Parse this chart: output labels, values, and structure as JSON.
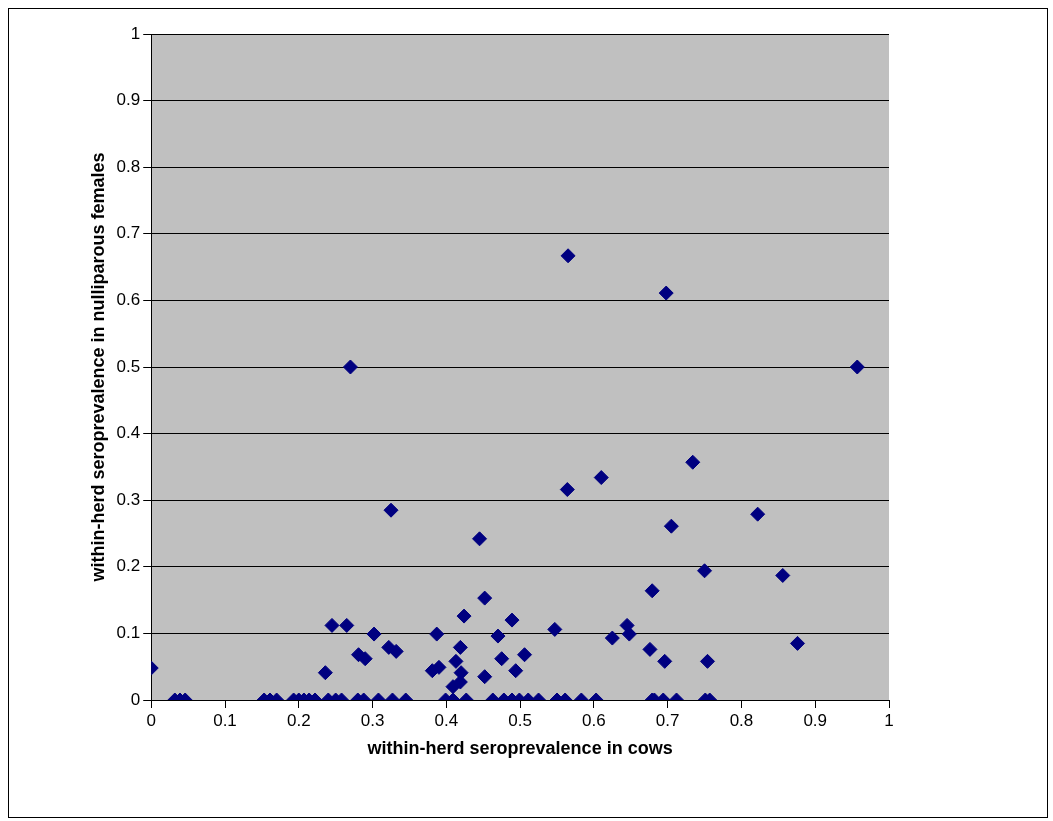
{
  "chart_data": {
    "type": "scatter",
    "xlabel": "within-herd seroprevalence in cows",
    "ylabel": "within-herd seroprevalence in nulliparous females",
    "xlim": [
      0,
      1
    ],
    "ylim": [
      0,
      1
    ],
    "xticks": [
      0,
      0.1,
      0.2,
      0.3,
      0.4,
      0.5,
      0.6,
      0.7,
      0.8,
      0.9,
      1
    ],
    "yticks": [
      0,
      0.1,
      0.2,
      0.3,
      0.4,
      0.5,
      0.6,
      0.7,
      0.8,
      0.9,
      1
    ],
    "grid": "y",
    "legend": false,
    "marker": "diamond",
    "series": [
      {
        "color": "#000080",
        "x": [
          0,
          0.032,
          0.039,
          0.046,
          0.153,
          0.161,
          0.17,
          0.193,
          0.2,
          0.207,
          0.214,
          0.222,
          0.24,
          0.25,
          0.258,
          0.28,
          0.288,
          0.308,
          0.327,
          0.345,
          0.399,
          0.409,
          0.427,
          0.463,
          0.478,
          0.489,
          0.499,
          0.511,
          0.525,
          0.55,
          0.561,
          0.583,
          0.603,
          0.679,
          0.682,
          0.694,
          0.712,
          0.751,
          0.757,
          0.245,
          0.265,
          0.236,
          0.302,
          0.281,
          0.29,
          0.322,
          0.332,
          0.387,
          0.452,
          0.424,
          0.489,
          0.47,
          0.547,
          0.419,
          0.413,
          0.381,
          0.39,
          0.475,
          0.506,
          0.494,
          0.42,
          0.452,
          0.409,
          0.419,
          0.625,
          0.645,
          0.648,
          0.679,
          0.676,
          0.564,
          0.61,
          0.734,
          0.705,
          0.822,
          0.75,
          0.856,
          0.696,
          0.754,
          0.876,
          0.27,
          0.325,
          0.445,
          0.565,
          0.698,
          0.957
        ],
        "values": [
          0.048,
          0,
          0,
          0,
          0,
          0,
          0,
          0,
          0,
          0,
          0,
          0,
          0,
          0,
          0,
          0,
          0,
          0,
          0,
          0,
          0,
          0,
          0,
          0,
          0,
          0,
          0,
          0,
          0,
          0,
          0,
          0,
          0,
          0,
          0,
          0,
          0,
          0,
          0,
          0.112,
          0.112,
          0.041,
          0.099,
          0.068,
          0.062,
          0.079,
          0.073,
          0.099,
          0.153,
          0.126,
          0.12,
          0.096,
          0.106,
          0.079,
          0.058,
          0.044,
          0.049,
          0.062,
          0.068,
          0.044,
          0.041,
          0.035,
          0.02,
          0.027,
          0.093,
          0.112,
          0.099,
          0.164,
          0.076,
          0.316,
          0.334,
          0.357,
          0.261,
          0.279,
          0.194,
          0.187,
          0.058,
          0.058,
          0.085,
          0.5,
          0.285,
          0.242,
          0.667,
          0.611,
          0.5
        ]
      }
    ]
  }
}
